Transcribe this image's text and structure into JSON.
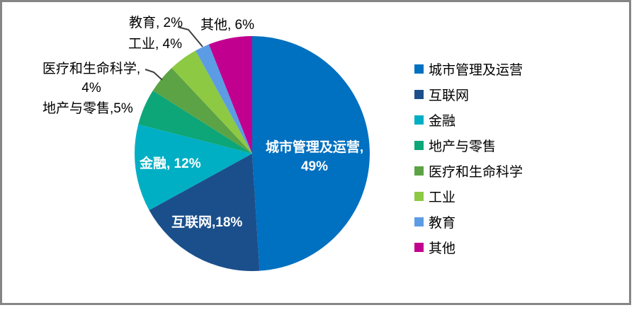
{
  "chart_data": {
    "type": "pie",
    "title": "",
    "categories": [
      "城市管理及运营",
      "互联网",
      "金融",
      "地产与零售",
      "医疗和生命科学",
      "工业",
      "教育",
      "其他"
    ],
    "values": [
      49,
      18,
      12,
      5,
      4,
      4,
      2,
      6
    ],
    "unit": "%",
    "colors": [
      "#0070C0",
      "#1B4F8B",
      "#00AFC4",
      "#0CA678",
      "#5CA345",
      "#8DC943",
      "#5C9CE4",
      "#C10090"
    ],
    "legend_position": "right",
    "start_angle_deg": 0,
    "direction": "clockwise",
    "data_labels": "category_and_percent"
  },
  "pie_labels": {
    "city": {
      "line1": "城市管理及运营,",
      "line2": "49%"
    },
    "internet": {
      "text": "互联网,18%"
    },
    "finance": {
      "text": "金融, 12%"
    },
    "realestate": {
      "text": "地产与零售,5%"
    },
    "medical": {
      "line1": "医疗和生命科学,",
      "line2": "4%"
    },
    "industry": {
      "text": "工业, 4%"
    },
    "education": {
      "text": "教育, 2%"
    },
    "other": {
      "text": "其他, 6%"
    }
  },
  "legend": {
    "items": [
      {
        "label": "城市管理及运营",
        "color": "#0070C0"
      },
      {
        "label": "互联网",
        "color": "#1B4F8B"
      },
      {
        "label": "金融",
        "color": "#00AFC4"
      },
      {
        "label": "地产与零售",
        "color": "#0CA678"
      },
      {
        "label": "医疗和生命科学",
        "color": "#5CA345"
      },
      {
        "label": "工业",
        "color": "#8DC943"
      },
      {
        "label": "教育",
        "color": "#5C9CE4"
      },
      {
        "label": "其他",
        "color": "#C10090"
      }
    ]
  }
}
